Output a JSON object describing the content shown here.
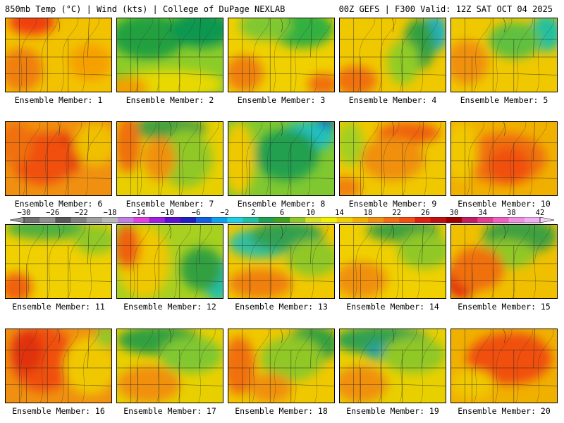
{
  "header": {
    "left": "850mb Temp (°C) | Wind (kts) | College of DuPage NEXLAB",
    "right": "00Z GEFS | F300 Valid: 12Z SAT OCT 04 2025"
  },
  "caption_prefix": "Ensemble Member:",
  "members": [
    {
      "label": "Ensemble Member: 1",
      "base": "#f2c200",
      "blobs": [
        [
          "#f04010",
          0.25,
          0.05,
          0.22,
          0.18
        ],
        [
          "#f08010",
          0.15,
          0.7,
          0.2,
          0.3
        ],
        [
          "#f5a000",
          0.8,
          0.6,
          0.2,
          0.25
        ]
      ]
    },
    {
      "label": "Ensemble Member: 2",
      "base": "#8ccc28",
      "blobs": [
        [
          "#20a040",
          0.3,
          0.25,
          0.35,
          0.3
        ],
        [
          "#109850",
          0.8,
          0.15,
          0.3,
          0.25
        ],
        [
          "#e8d800",
          0.5,
          0.9,
          0.5,
          0.2
        ],
        [
          "#f0a000",
          0.1,
          0.95,
          0.2,
          0.15
        ]
      ]
    },
    {
      "label": "Ensemble Member: 3",
      "base": "#f0d000",
      "blobs": [
        [
          "#30b040",
          0.7,
          0.15,
          0.3,
          0.25
        ],
        [
          "#80c830",
          0.35,
          0.1,
          0.25,
          0.2
        ],
        [
          "#f08010",
          0.15,
          0.75,
          0.18,
          0.25
        ],
        [
          "#f07010",
          0.9,
          0.9,
          0.15,
          0.15
        ]
      ]
    },
    {
      "label": "Ensemble Member: 4",
      "base": "#f0c800",
      "blobs": [
        [
          "#20b0c0",
          0.9,
          0.2,
          0.12,
          0.25
        ],
        [
          "#30a040",
          0.75,
          0.35,
          0.15,
          0.35
        ],
        [
          "#90cc28",
          0.6,
          0.6,
          0.15,
          0.3
        ],
        [
          "#f07010",
          0.15,
          0.85,
          0.2,
          0.2
        ]
      ]
    },
    {
      "label": "Ensemble Member: 5",
      "base": "#f0c800",
      "blobs": [
        [
          "#20c0a0",
          0.9,
          0.2,
          0.15,
          0.25
        ],
        [
          "#60c040",
          0.6,
          0.3,
          0.25,
          0.25
        ],
        [
          "#f09010",
          0.15,
          0.6,
          0.2,
          0.3
        ]
      ]
    },
    {
      "label": "Ensemble Member: 6",
      "base": "#f09010",
      "blobs": [
        [
          "#e02010",
          0.5,
          0.45,
          0.22,
          0.3
        ],
        [
          "#f05010",
          0.35,
          0.5,
          0.3,
          0.35
        ],
        [
          "#f0c000",
          0.85,
          0.3,
          0.2,
          0.3
        ],
        [
          "#f07010",
          0.1,
          0.3,
          0.15,
          0.3
        ]
      ]
    },
    {
      "label": "Ensemble Member: 7",
      "base": "#e8d000",
      "blobs": [
        [
          "#40a040",
          0.45,
          0.08,
          0.4,
          0.15
        ],
        [
          "#90c828",
          0.65,
          0.5,
          0.25,
          0.4
        ],
        [
          "#f09010",
          0.4,
          0.5,
          0.15,
          0.3
        ],
        [
          "#f07010",
          0.1,
          0.3,
          0.12,
          0.4
        ]
      ]
    },
    {
      "label": "Ensemble Member: 8",
      "base": "#80c830",
      "blobs": [
        [
          "#1040c0",
          0.9,
          0.05,
          0.1,
          0.12
        ],
        [
          "#20c0c0",
          0.75,
          0.2,
          0.25,
          0.2
        ],
        [
          "#20a050",
          0.55,
          0.45,
          0.3,
          0.35
        ],
        [
          "#f0c800",
          0.1,
          0.5,
          0.15,
          0.5
        ]
      ]
    },
    {
      "label": "Ensemble Member: 9",
      "base": "#f0c800",
      "blobs": [
        [
          "#f06010",
          0.65,
          0.15,
          0.3,
          0.15
        ],
        [
          "#f09010",
          0.5,
          0.5,
          0.3,
          0.3
        ],
        [
          "#a0d020",
          0.1,
          0.3,
          0.12,
          0.3
        ],
        [
          "#f08010",
          0.05,
          0.9,
          0.15,
          0.15
        ]
      ]
    },
    {
      "label": "Ensemble Member: 10",
      "base": "#f0b000",
      "blobs": [
        [
          "#f07010",
          0.5,
          0.5,
          0.4,
          0.35
        ],
        [
          "#f05010",
          0.55,
          0.6,
          0.2,
          0.25
        ],
        [
          "#f0c800",
          0.1,
          0.4,
          0.15,
          0.4
        ]
      ]
    },
    {
      "label": "Ensemble Member: 11",
      "base": "#f0d000",
      "blobs": [
        [
          "#50b040",
          0.4,
          0.05,
          0.4,
          0.15
        ],
        [
          "#90c828",
          0.85,
          0.2,
          0.2,
          0.2
        ],
        [
          "#f06010",
          0.1,
          0.85,
          0.15,
          0.2
        ]
      ]
    },
    {
      "label": "Ensemble Member: 12",
      "base": "#a8d020",
      "blobs": [
        [
          "#20c0b0",
          0.95,
          0.75,
          0.12,
          0.3
        ],
        [
          "#30a040",
          0.8,
          0.6,
          0.2,
          0.3
        ],
        [
          "#f0c800",
          0.25,
          0.5,
          0.25,
          0.5
        ],
        [
          "#f06010",
          0.1,
          0.3,
          0.12,
          0.3
        ]
      ]
    },
    {
      "label": "Ensemble Member: 13",
      "base": "#f0c800",
      "blobs": [
        [
          "#30c0a0",
          0.3,
          0.25,
          0.3,
          0.2
        ],
        [
          "#30a050",
          0.55,
          0.15,
          0.35,
          0.2
        ],
        [
          "#90c828",
          0.8,
          0.45,
          0.25,
          0.25
        ],
        [
          "#f08010",
          0.3,
          0.8,
          0.3,
          0.2
        ]
      ]
    },
    {
      "label": "Ensemble Member: 14",
      "base": "#f0d000",
      "blobs": [
        [
          "#40a040",
          0.6,
          0.08,
          0.35,
          0.15
        ],
        [
          "#90c828",
          0.8,
          0.35,
          0.25,
          0.25
        ],
        [
          "#f09010",
          0.2,
          0.75,
          0.25,
          0.25
        ]
      ]
    },
    {
      "label": "Ensemble Member: 15",
      "base": "#f0c000",
      "blobs": [
        [
          "#40a040",
          0.65,
          0.15,
          0.35,
          0.25
        ],
        [
          "#90c828",
          0.5,
          0.4,
          0.3,
          0.2
        ],
        [
          "#e02010",
          0.1,
          0.75,
          0.15,
          0.25
        ],
        [
          "#f07010",
          0.25,
          0.6,
          0.25,
          0.3
        ]
      ]
    },
    {
      "label": "Ensemble Member: 16",
      "base": "#f09010",
      "blobs": [
        [
          "#f05010",
          0.35,
          0.4,
          0.3,
          0.45
        ],
        [
          "#e03010",
          0.2,
          0.3,
          0.15,
          0.3
        ],
        [
          "#f0c800",
          0.8,
          0.5,
          0.25,
          0.4
        ],
        [
          "#90c828",
          0.95,
          0.1,
          0.1,
          0.15
        ]
      ]
    },
    {
      "label": "Ensemble Member: 17",
      "base": "#e8d000",
      "blobs": [
        [
          "#30a040",
          0.4,
          0.15,
          0.4,
          0.2
        ],
        [
          "#80c830",
          0.7,
          0.35,
          0.3,
          0.25
        ],
        [
          "#f09010",
          0.3,
          0.75,
          0.3,
          0.25
        ]
      ]
    },
    {
      "label": "Ensemble Member: 18",
      "base": "#f0c800",
      "blobs": [
        [
          "#30a040",
          0.8,
          0.2,
          0.25,
          0.25
        ],
        [
          "#90c828",
          0.6,
          0.4,
          0.3,
          0.3
        ],
        [
          "#f07010",
          0.1,
          0.5,
          0.15,
          0.4
        ],
        [
          "#f09010",
          0.4,
          0.8,
          0.2,
          0.2
        ]
      ]
    },
    {
      "label": "Ensemble Member: 19",
      "base": "#e8d000",
      "blobs": [
        [
          "#30a050",
          0.4,
          0.15,
          0.45,
          0.2
        ],
        [
          "#20a0a0",
          0.35,
          0.3,
          0.1,
          0.12
        ],
        [
          "#90c828",
          0.7,
          0.35,
          0.3,
          0.25
        ],
        [
          "#f09010",
          0.2,
          0.75,
          0.25,
          0.25
        ]
      ]
    },
    {
      "label": "Ensemble Member: 20",
      "base": "#f0b000",
      "blobs": [
        [
          "#e02010",
          0.6,
          0.3,
          0.3,
          0.25
        ],
        [
          "#f05010",
          0.55,
          0.4,
          0.4,
          0.35
        ],
        [
          "#f0c800",
          0.2,
          0.75,
          0.2,
          0.2
        ]
      ]
    }
  ],
  "colorbar": {
    "ticks": [
      "−30",
      "−26",
      "−22",
      "−18",
      "−14",
      "−10",
      "−6",
      "−2",
      "2",
      "6",
      "10",
      "14",
      "18",
      "22",
      "26",
      "30",
      "34",
      "38",
      "42"
    ],
    "colors": [
      "#707070",
      "#909090",
      "#585858",
      "#808080",
      "#a0a0a0",
      "#b8b8b8",
      "#c080e0",
      "#e040e0",
      "#a020e0",
      "#6010d0",
      "#2020c0",
      "#1060e0",
      "#10a0f0",
      "#20d0e0",
      "#20c0a0",
      "#20a050",
      "#40a020",
      "#90c828",
      "#d8e020",
      "#f0f000",
      "#f0d000",
      "#f0b000",
      "#f09010",
      "#f07010",
      "#f05010",
      "#e02010",
      "#c01010",
      "#a00000",
      "#c02060",
      "#e04090",
      "#f060c0",
      "#f090e0",
      "#f0b0f0"
    ]
  }
}
